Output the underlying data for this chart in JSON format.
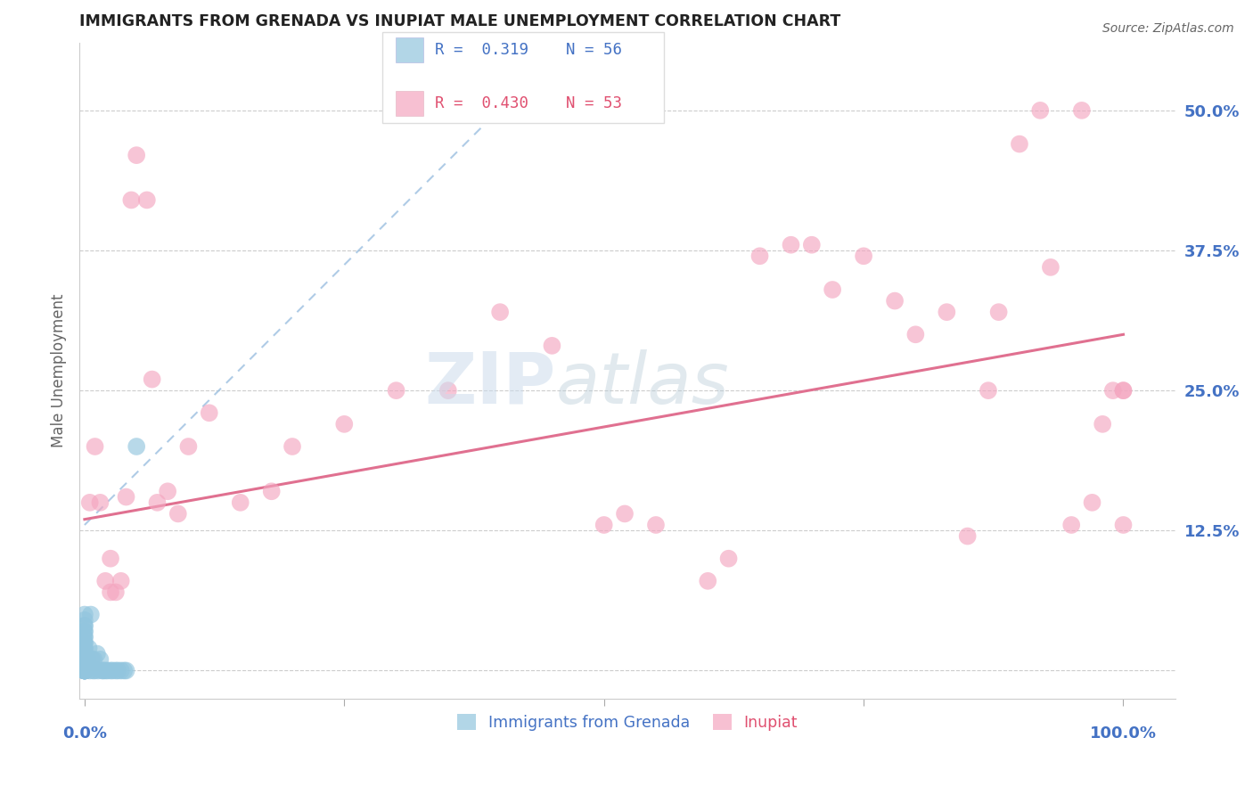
{
  "title": "IMMIGRANTS FROM GRENADA VS INUPIAT MALE UNEMPLOYMENT CORRELATION CHART",
  "source": "Source: ZipAtlas.com",
  "ylabel": "Male Unemployment",
  "yticks": [
    0.0,
    0.125,
    0.25,
    0.375,
    0.5
  ],
  "ytick_labels": [
    "",
    "12.5%",
    "25.0%",
    "37.5%",
    "50.0%"
  ],
  "xlim": [
    -0.005,
    1.05
  ],
  "ylim": [
    -0.025,
    0.56
  ],
  "legend": {
    "blue_label": "Immigrants from Grenada",
    "pink_label": "Inupiat",
    "blue_R": "R =  0.319",
    "blue_N": "N = 56",
    "pink_R": "R =  0.430",
    "pink_N": "N = 53"
  },
  "blue_color": "#92c5de",
  "pink_color": "#f4a6c0",
  "trend_blue_color": "#9bbfe0",
  "trend_pink_color": "#e07090",
  "blue_x": [
    0.0,
    0.0,
    0.0,
    0.0,
    0.0,
    0.0,
    0.0,
    0.0,
    0.0,
    0.0,
    0.0,
    0.0,
    0.0,
    0.0,
    0.0,
    0.0,
    0.0,
    0.0,
    0.0,
    0.0,
    0.0,
    0.0,
    0.0,
    0.0,
    0.0,
    0.0,
    0.0,
    0.0,
    0.0,
    0.0,
    0.001,
    0.001,
    0.002,
    0.003,
    0.004,
    0.005,
    0.006,
    0.007,
    0.008,
    0.009,
    0.01,
    0.012,
    0.013,
    0.015,
    0.017,
    0.018,
    0.02,
    0.022,
    0.025,
    0.027,
    0.03,
    0.032,
    0.035,
    0.038,
    0.04,
    0.05
  ],
  "blue_y": [
    0.0,
    0.0,
    0.0,
    0.0,
    0.0,
    0.0,
    0.0,
    0.0,
    0.0,
    0.0,
    0.005,
    0.005,
    0.01,
    0.01,
    0.01,
    0.015,
    0.015,
    0.015,
    0.02,
    0.02,
    0.025,
    0.025,
    0.03,
    0.03,
    0.035,
    0.035,
    0.04,
    0.04,
    0.045,
    0.05,
    0.0,
    0.01,
    0.005,
    0.01,
    0.02,
    0.0,
    0.05,
    0.01,
    0.0,
    0.01,
    0.0,
    0.015,
    0.0,
    0.01,
    0.0,
    0.0,
    0.0,
    0.0,
    0.0,
    0.0,
    0.0,
    0.0,
    0.0,
    0.0,
    0.0,
    0.2
  ],
  "pink_x": [
    0.005,
    0.01,
    0.015,
    0.02,
    0.025,
    0.025,
    0.03,
    0.035,
    0.04,
    0.045,
    0.05,
    0.06,
    0.065,
    0.07,
    0.08,
    0.09,
    0.1,
    0.12,
    0.15,
    0.18,
    0.2,
    0.25,
    0.3,
    0.35,
    0.4,
    0.45,
    0.5,
    0.52,
    0.55,
    0.6,
    0.62,
    0.65,
    0.68,
    0.7,
    0.72,
    0.75,
    0.78,
    0.8,
    0.83,
    0.85,
    0.87,
    0.88,
    0.9,
    0.92,
    0.93,
    0.95,
    0.96,
    0.97,
    0.98,
    0.99,
    1.0,
    1.0,
    1.0
  ],
  "pink_y": [
    0.15,
    0.2,
    0.15,
    0.08,
    0.07,
    0.1,
    0.07,
    0.08,
    0.155,
    0.42,
    0.46,
    0.42,
    0.26,
    0.15,
    0.16,
    0.14,
    0.2,
    0.23,
    0.15,
    0.16,
    0.2,
    0.22,
    0.25,
    0.25,
    0.32,
    0.29,
    0.13,
    0.14,
    0.13,
    0.08,
    0.1,
    0.37,
    0.38,
    0.38,
    0.34,
    0.37,
    0.33,
    0.3,
    0.32,
    0.12,
    0.25,
    0.32,
    0.47,
    0.5,
    0.36,
    0.13,
    0.5,
    0.15,
    0.22,
    0.25,
    0.13,
    0.25,
    0.25
  ]
}
